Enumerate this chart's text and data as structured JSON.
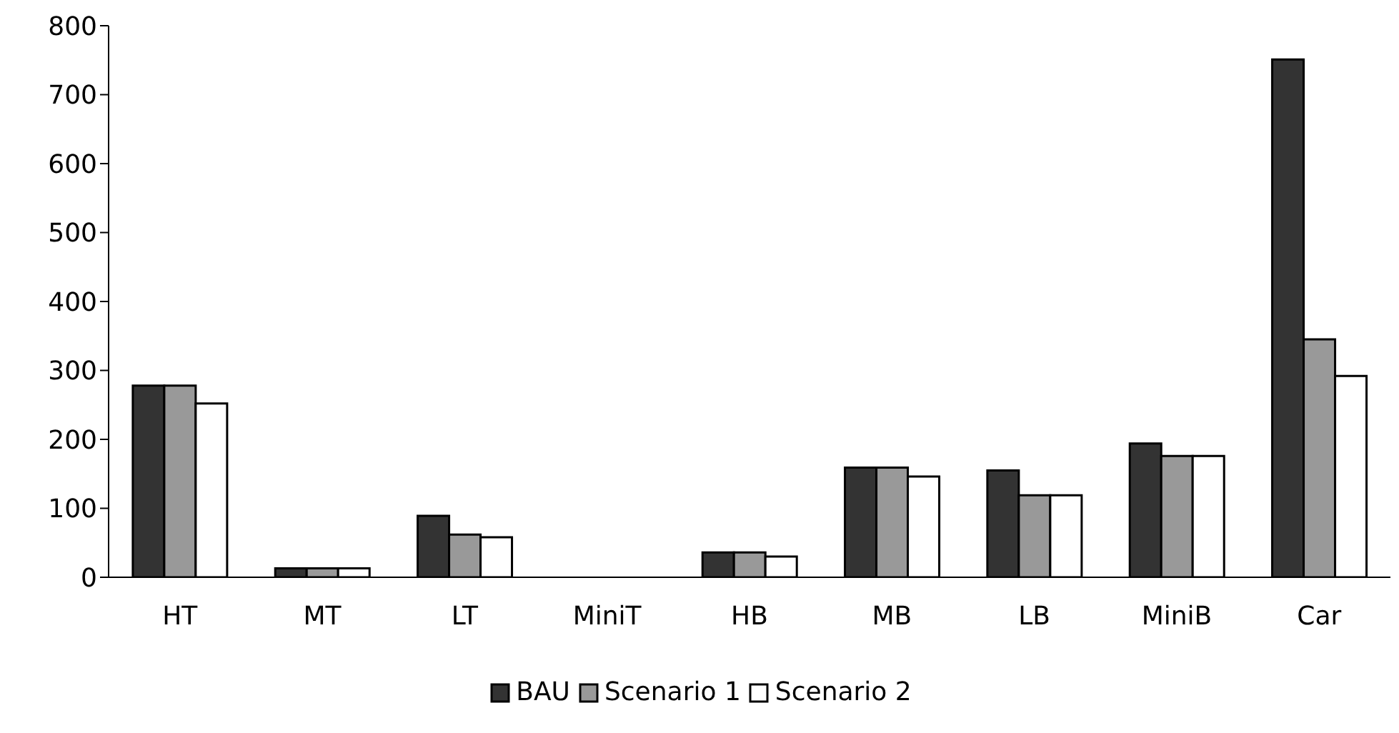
{
  "chart_data": {
    "type": "bar",
    "categories": [
      "HT",
      "MT",
      "LT",
      "MiniT",
      "HB",
      "MB",
      "LB",
      "MiniB",
      "Car"
    ],
    "series": [
      {
        "name": "BAU",
        "color": "#333333",
        "values": [
          278,
          13,
          89,
          0,
          36,
          159,
          155,
          194,
          751
        ]
      },
      {
        "name": "Scenario 1",
        "color": "#999999",
        "values": [
          278,
          13,
          62,
          0,
          36,
          159,
          119,
          176,
          345
        ]
      },
      {
        "name": "Scenario 2",
        "color": "#ffffff",
        "values": [
          252,
          13,
          58,
          0,
          30,
          146,
          119,
          176,
          292
        ]
      }
    ],
    "ylim": [
      0,
      800
    ],
    "yticks": [
      0,
      100,
      200,
      300,
      400,
      500,
      600,
      700,
      800
    ],
    "grid": false,
    "legend": "bottom"
  }
}
